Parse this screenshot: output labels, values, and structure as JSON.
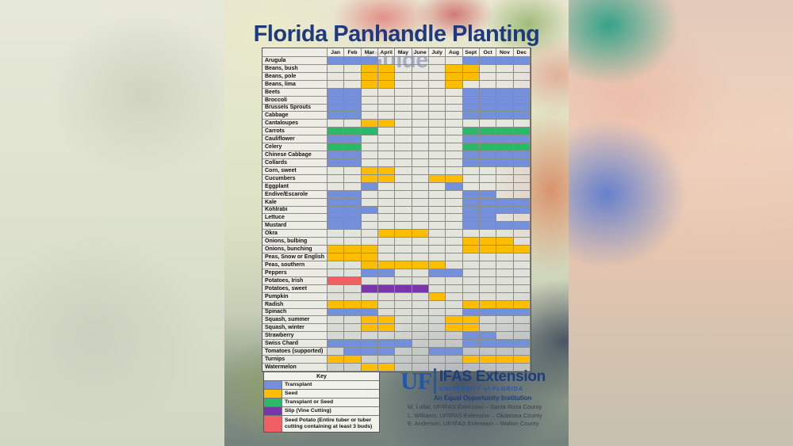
{
  "title": "Florida Panhandle Planting Guide",
  "chart_data": {
    "type": "table",
    "title": "Florida Panhandle Planting Guide",
    "months": [
      "Jan",
      "Feb",
      "Mar",
      "April",
      "May",
      "June",
      "July",
      "Aug",
      "Sept",
      "Oct",
      "Nov",
      "Dec"
    ],
    "methods": {
      "transplant": "Transplant",
      "seed": "Seed",
      "transplant_or_seed": "Transplant or Seed",
      "slip": "Slip (Vine Cutting)",
      "seed_potato": "Seed Potato (Entire tuber or tuber cutting containing at least 3 buds)"
    },
    "method_colors": {
      "transplant": "#7490da",
      "seed": "#fdbd00",
      "transplant_or_seed": "#2bb86a",
      "slip": "#7a35ab",
      "seed_potato": "#f05f62"
    },
    "crops": [
      {
        "name": "Arugula",
        "spans": [
          {
            "from": 1,
            "to": 3,
            "method": "transplant"
          },
          {
            "from": 9,
            "to": 12,
            "method": "transplant"
          }
        ]
      },
      {
        "name": "Beans, bush",
        "spans": [
          {
            "from": 3,
            "to": 4,
            "method": "seed"
          },
          {
            "from": 8,
            "to": 9,
            "method": "seed"
          }
        ]
      },
      {
        "name": "Beans, pole",
        "spans": [
          {
            "from": 3,
            "to": 4,
            "method": "seed"
          },
          {
            "from": 8,
            "to": 9,
            "method": "seed"
          }
        ]
      },
      {
        "name": "Beans, lima",
        "spans": [
          {
            "from": 3,
            "to": 4,
            "method": "seed"
          },
          {
            "from": 8,
            "to": 8,
            "method": "seed"
          }
        ]
      },
      {
        "name": "Beets",
        "spans": [
          {
            "from": 1,
            "to": 2,
            "method": "transplant"
          },
          {
            "from": 9,
            "to": 12,
            "method": "transplant"
          }
        ]
      },
      {
        "name": "Broccoli",
        "spans": [
          {
            "from": 1,
            "to": 2,
            "method": "transplant"
          },
          {
            "from": 9,
            "to": 12,
            "method": "transplant"
          }
        ]
      },
      {
        "name": "Brussels Sprouts",
        "spans": [
          {
            "from": 1,
            "to": 2,
            "method": "transplant"
          },
          {
            "from": 9,
            "to": 12,
            "method": "transplant"
          }
        ]
      },
      {
        "name": "Cabbage",
        "spans": [
          {
            "from": 1,
            "to": 2,
            "method": "transplant"
          },
          {
            "from": 9,
            "to": 12,
            "method": "transplant"
          }
        ]
      },
      {
        "name": "Cantaloupes",
        "spans": [
          {
            "from": 3,
            "to": 4,
            "method": "seed"
          }
        ]
      },
      {
        "name": "Carrots",
        "spans": [
          {
            "from": 1,
            "to": 3,
            "method": "transplant_or_seed"
          },
          {
            "from": 9,
            "to": 12,
            "method": "transplant_or_seed"
          }
        ]
      },
      {
        "name": "Cauliflower",
        "spans": [
          {
            "from": 1,
            "to": 2,
            "method": "transplant"
          },
          {
            "from": 9,
            "to": 12,
            "method": "transplant"
          }
        ]
      },
      {
        "name": "Celery",
        "spans": [
          {
            "from": 1,
            "to": 2,
            "method": "transplant_or_seed"
          },
          {
            "from": 9,
            "to": 12,
            "method": "transplant_or_seed"
          }
        ]
      },
      {
        "name": "Chinese Cabbage",
        "spans": [
          {
            "from": 1,
            "to": 2,
            "method": "transplant"
          },
          {
            "from": 9,
            "to": 12,
            "method": "transplant"
          }
        ]
      },
      {
        "name": "Collards",
        "spans": [
          {
            "from": 1,
            "to": 2,
            "method": "transplant"
          },
          {
            "from": 9,
            "to": 12,
            "method": "transplant"
          }
        ]
      },
      {
        "name": "Corn, sweet",
        "spans": [
          {
            "from": 3,
            "to": 4,
            "method": "seed"
          }
        ]
      },
      {
        "name": "Cucumbers",
        "spans": [
          {
            "from": 3,
            "to": 4,
            "method": "seed"
          },
          {
            "from": 7,
            "to": 8,
            "method": "seed"
          }
        ]
      },
      {
        "name": "Eggplant",
        "spans": [
          {
            "from": 3,
            "to": 3,
            "method": "transplant"
          },
          {
            "from": 8,
            "to": 8,
            "method": "transplant"
          }
        ]
      },
      {
        "name": "Endive/Escarole",
        "spans": [
          {
            "from": 1,
            "to": 2,
            "method": "transplant"
          },
          {
            "from": 9,
            "to": 10,
            "method": "transplant"
          }
        ]
      },
      {
        "name": "Kale",
        "spans": [
          {
            "from": 1,
            "to": 2,
            "method": "transplant"
          },
          {
            "from": 9,
            "to": 12,
            "method": "transplant"
          }
        ]
      },
      {
        "name": "Kohlrabi",
        "spans": [
          {
            "from": 1,
            "to": 3,
            "method": "transplant"
          },
          {
            "from": 9,
            "to": 12,
            "method": "transplant"
          }
        ]
      },
      {
        "name": "Lettuce",
        "spans": [
          {
            "from": 1,
            "to": 2,
            "method": "transplant"
          },
          {
            "from": 9,
            "to": 10,
            "method": "transplant"
          }
        ]
      },
      {
        "name": "Mustard",
        "spans": [
          {
            "from": 1,
            "to": 2,
            "method": "transplant"
          },
          {
            "from": 9,
            "to": 12,
            "method": "transplant"
          }
        ]
      },
      {
        "name": "Okra",
        "spans": [
          {
            "from": 4,
            "to": 6,
            "method": "seed"
          }
        ]
      },
      {
        "name": "Onions, bulbing",
        "spans": [
          {
            "from": 9,
            "to": 11,
            "method": "seed"
          }
        ]
      },
      {
        "name": "Onions, bunching",
        "spans": [
          {
            "from": 1,
            "to": 3,
            "method": "seed"
          },
          {
            "from": 9,
            "to": 12,
            "method": "seed"
          }
        ]
      },
      {
        "name": "Peas, Snow or English",
        "spans": [
          {
            "from": 1,
            "to": 3,
            "method": "seed"
          }
        ]
      },
      {
        "name": "Peas, southern",
        "spans": [
          {
            "from": 3,
            "to": 7,
            "method": "seed"
          }
        ]
      },
      {
        "name": "Peppers",
        "spans": [
          {
            "from": 3,
            "to": 4,
            "method": "transplant"
          },
          {
            "from": 7,
            "to": 8,
            "method": "transplant"
          }
        ]
      },
      {
        "name": "Potatoes, Irish",
        "spans": [
          {
            "from": 1,
            "to": 2,
            "method": "seed_potato"
          }
        ]
      },
      {
        "name": "Potatoes, sweet",
        "spans": [
          {
            "from": 3,
            "to": 6,
            "method": "slip"
          }
        ]
      },
      {
        "name": "Pumpkin",
        "spans": [
          {
            "from": 7,
            "to": 7,
            "method": "seed"
          }
        ]
      },
      {
        "name": "Radish",
        "spans": [
          {
            "from": 1,
            "to": 3,
            "method": "seed"
          },
          {
            "from": 9,
            "to": 12,
            "method": "seed"
          }
        ]
      },
      {
        "name": "Spinach",
        "spans": [
          {
            "from": 1,
            "to": 3,
            "method": "transplant"
          },
          {
            "from": 9,
            "to": 12,
            "method": "transplant"
          }
        ]
      },
      {
        "name": "Squash, summer",
        "spans": [
          {
            "from": 3,
            "to": 4,
            "method": "seed"
          },
          {
            "from": 8,
            "to": 9,
            "method": "seed"
          }
        ]
      },
      {
        "name": "Squash, winter",
        "spans": [
          {
            "from": 3,
            "to": 4,
            "method": "seed"
          },
          {
            "from": 8,
            "to": 9,
            "method": "seed"
          }
        ]
      },
      {
        "name": "Strawberry",
        "spans": [
          {
            "from": 9,
            "to": 10,
            "method": "transplant"
          }
        ]
      },
      {
        "name": "Swiss Chard",
        "spans": [
          {
            "from": 1,
            "to": 5,
            "method": "transplant"
          },
          {
            "from": 9,
            "to": 12,
            "method": "transplant"
          }
        ]
      },
      {
        "name": "Tomatoes (supported)",
        "spans": [
          {
            "from": 2,
            "to": 4,
            "method": "transplant"
          },
          {
            "from": 7,
            "to": 8,
            "method": "transplant"
          }
        ]
      },
      {
        "name": "Turnips",
        "spans": [
          {
            "from": 1,
            "to": 2,
            "method": "seed"
          },
          {
            "from": 9,
            "to": 12,
            "method": "seed"
          }
        ]
      },
      {
        "name": "Watermelon",
        "spans": [
          {
            "from": 3,
            "to": 4,
            "method": "seed"
          }
        ]
      }
    ]
  },
  "key": {
    "heading": "Key",
    "items": [
      {
        "method": "transplant",
        "label": "Transplant",
        "color": "#7490da"
      },
      {
        "method": "seed",
        "label": "Seed",
        "color": "#fdbd00"
      },
      {
        "method": "transplant_or_seed",
        "label": "Transplant or Seed",
        "color": "#2bb86a"
      },
      {
        "method": "slip",
        "label": "Slip (Vine Cutting)",
        "color": "#7a35ab"
      },
      {
        "method": "seed_potato",
        "label": "Seed Potato (Entire tuber or tuber cutting containing at least 3 buds)",
        "color": "#f05f62"
      }
    ]
  },
  "logo": {
    "uf": "UF",
    "ifas": "IFAS Extension",
    "university": "UNIVERSITY of FLORIDA",
    "equal_opportunity": "An Equal Opportunity Institution"
  },
  "credits": [
    "M. Lollar, UF/IFAS Extension – Santa Rosa County",
    "L. Williams, UF/IFAS Extension – Okaloosa County",
    "E. Anderson, UF/IFAS Extension – Walton County"
  ]
}
